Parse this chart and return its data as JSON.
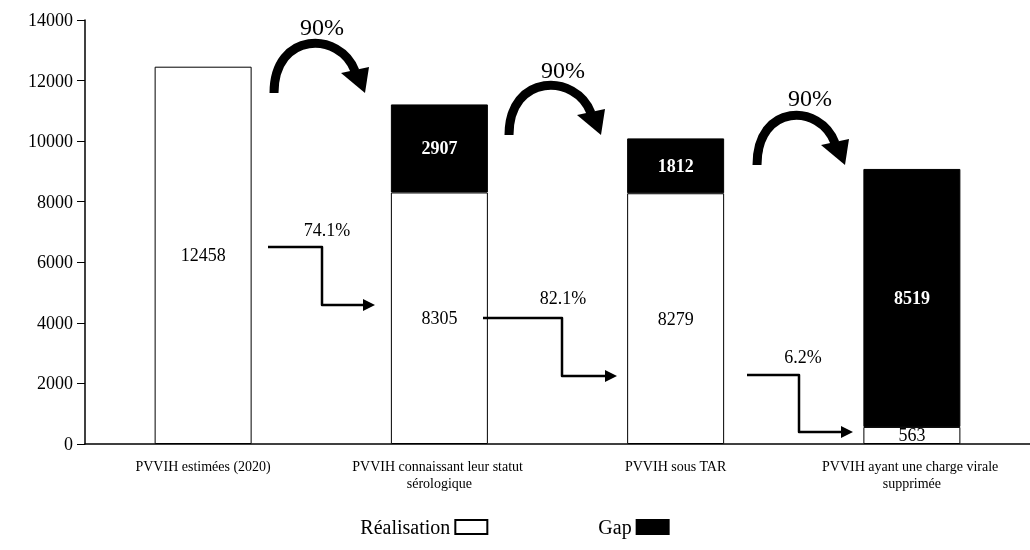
{
  "chart_data": {
    "type": "bar",
    "stacked": true,
    "categories": [
      "PVVIH estimées (2020)",
      "PVVIH connaissant leur statut sérologique",
      "PVVIH sous TAR",
      "PVVIH ayant une charge virale supprimée"
    ],
    "series": [
      {
        "name": "Réalisation",
        "color": "#ffffff",
        "values": [
          12458,
          8305,
          8279,
          563
        ]
      },
      {
        "name": "Gap",
        "color": "#000000",
        "values": [
          null,
          2907,
          1812,
          8519
        ]
      }
    ],
    "ylim": [
      0,
      14000
    ],
    "yticks": [
      0,
      2000,
      4000,
      6000,
      8000,
      10000,
      12000,
      14000
    ],
    "grid": false,
    "legend": "bottom",
    "data_labels": true,
    "annotations": [
      "90%",
      "90%",
      "90%",
      "74.1%",
      "82.1%",
      "6.2%"
    ]
  }
}
